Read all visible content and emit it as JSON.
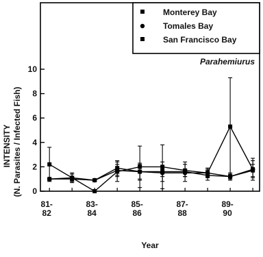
{
  "chart_data": {
    "type": "line",
    "title": "",
    "panel_label": "Parahemiurus",
    "xlabel": "Year",
    "ylabel_line1": "INTENSITY",
    "ylabel_line2": "(N. Parasites / Infected Fish)",
    "ylim": [
      0,
      10
    ],
    "yticks": [
      "0",
      "2",
      "4",
      "6",
      "8",
      "10"
    ],
    "x_ticks": [
      {
        "top": "81-",
        "bottom": "82"
      },
      {
        "top": "83-",
        "bottom": "84"
      },
      {
        "top": "85-",
        "bottom": "86"
      },
      {
        "top": "87-",
        "bottom": "88"
      },
      {
        "top": "89-",
        "bottom": "90"
      }
    ],
    "x_range": [
      80.6,
      90.3
    ],
    "grid": false,
    "legend_position": "top-right",
    "series": [
      {
        "name": "Monterey Bay",
        "marker": "square",
        "points": [
          {
            "x": 81,
            "y": 2.2,
            "err": 1.4
          },
          {
            "x": 82,
            "y": 1.1,
            "err": 0.4
          },
          {
            "x": 83,
            "y": 0.0,
            "err": 0
          },
          {
            "x": 84,
            "y": 1.6,
            "err": 0.8
          },
          {
            "x": 85,
            "y": 2.0,
            "err": 1.7
          },
          {
            "x": 86,
            "y": 2.0,
            "err": 1.8
          },
          {
            "x": 87,
            "y": 1.7,
            "err": 0.5
          },
          {
            "x": 88,
            "y": 1.5,
            "err": 0.4
          },
          {
            "x": 89,
            "y": 5.3,
            "err": 4.0
          },
          {
            "x": 90,
            "y": 1.8,
            "err": 0.7
          }
        ]
      },
      {
        "name": "Tomales Bay",
        "marker": "circle",
        "points": [
          {
            "x": 81,
            "y": 1.0,
            "err": 0
          },
          {
            "x": 82,
            "y": 1.1,
            "err": 0.3
          },
          {
            "x": 83,
            "y": 0.9,
            "err": 0.1
          },
          {
            "x": 84,
            "y": 1.7,
            "err": 0.5
          },
          {
            "x": 85,
            "y": 1.6,
            "err": 0.6
          },
          {
            "x": 86,
            "y": 1.5,
            "err": 0.3
          },
          {
            "x": 87,
            "y": 1.5,
            "err": 0.3
          },
          {
            "x": 88,
            "y": 1.5,
            "err": 0.3
          },
          {
            "x": 89,
            "y": 1.2,
            "err": 0.3
          },
          {
            "x": 90,
            "y": 1.8,
            "err": 0.9
          }
        ]
      },
      {
        "name": "San Francisco Bay",
        "marker": "square",
        "points": [
          {
            "x": 81,
            "y": 1.0,
            "err": 0
          },
          {
            "x": 82,
            "y": 1.0,
            "err": 0.2
          },
          {
            "x": 83,
            "y": 0.9,
            "err": 0.1
          },
          {
            "x": 84,
            "y": 1.9,
            "err": 0.6
          },
          {
            "x": 85,
            "y": 1.6,
            "err": 0.7
          },
          {
            "x": 86,
            "y": 1.6,
            "err": 0.8
          },
          {
            "x": 87,
            "y": 1.6,
            "err": 0.8
          },
          {
            "x": 88,
            "y": 1.3,
            "err": 0.4
          },
          {
            "x": 89,
            "y": 1.2,
            "err": 0.2
          },
          {
            "x": 90,
            "y": 1.7,
            "err": 0.5
          }
        ]
      }
    ]
  }
}
